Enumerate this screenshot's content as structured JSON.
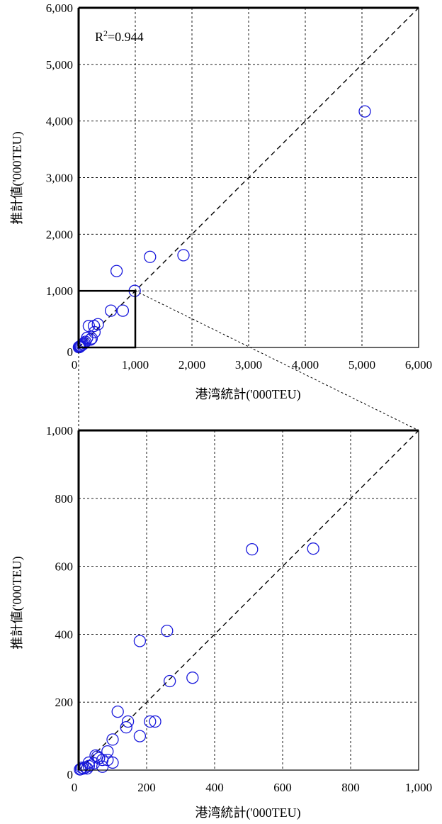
{
  "chart_data": [
    {
      "type": "scatter",
      "xlabel": "港湾統計('000TEU)",
      "ylabel": "推計値('000TEU)",
      "annotation": {
        "base": "R",
        "sup": "2",
        "rest": "=0.944"
      },
      "xlim": [
        0,
        6000
      ],
      "ylim": [
        0,
        6000
      ],
      "xticks": [
        0,
        1000,
        2000,
        3000,
        4000,
        5000,
        6000
      ],
      "yticks": [
        0,
        1000,
        2000,
        3000,
        4000,
        5000,
        6000
      ],
      "xtick_labels": [
        "0",
        "1,000",
        "2,000",
        "3,000",
        "4,000",
        "5,000",
        "6,000"
      ],
      "ytick_labels": [
        "0",
        "1,000",
        "2,000",
        "3,000",
        "4,000",
        "5,000",
        "6,000"
      ],
      "grid": true,
      "reference_line": "y=x",
      "zoom_box": [
        0,
        1000,
        0,
        1000
      ],
      "points": [
        {
          "x": 5050,
          "y": 4170
        },
        {
          "x": 1850,
          "y": 1630
        },
        {
          "x": 1260,
          "y": 1600
        },
        {
          "x": 670,
          "y": 1350
        },
        {
          "x": 990,
          "y": 1000
        },
        {
          "x": 780,
          "y": 650
        },
        {
          "x": 570,
          "y": 650
        },
        {
          "x": 340,
          "y": 410
        },
        {
          "x": 270,
          "y": 380
        },
        {
          "x": 180,
          "y": 380
        },
        {
          "x": 280,
          "y": 270
        },
        {
          "x": 230,
          "y": 160
        },
        {
          "x": 210,
          "y": 140
        },
        {
          "x": 150,
          "y": 170
        },
        {
          "x": 120,
          "y": 100
        },
        {
          "x": 100,
          "y": 80
        },
        {
          "x": 80,
          "y": 60
        },
        {
          "x": 60,
          "y": 45
        },
        {
          "x": 40,
          "y": 30
        },
        {
          "x": 30,
          "y": 20
        },
        {
          "x": 20,
          "y": 15
        },
        {
          "x": 15,
          "y": 10
        },
        {
          "x": 10,
          "y": 8
        },
        {
          "x": 5,
          "y": 5
        }
      ]
    },
    {
      "type": "scatter",
      "xlabel": "港湾統計('000TEU)",
      "ylabel": "推計値('000TEU)",
      "xlim": [
        0,
        1000
      ],
      "ylim": [
        0,
        1000
      ],
      "xticks": [
        0,
        200,
        400,
        600,
        800,
        1000
      ],
      "yticks": [
        0,
        200,
        400,
        600,
        800,
        1000
      ],
      "xtick_labels": [
        "0",
        "200",
        "400",
        "600",
        "800",
        "1,000"
      ],
      "ytick_labels": [
        "0",
        "200",
        "400",
        "600",
        "800",
        "1,000"
      ],
      "grid": true,
      "reference_line": "y=x",
      "points": [
        {
          "x": 690,
          "y": 652
        },
        {
          "x": 510,
          "y": 650
        },
        {
          "x": 260,
          "y": 410
        },
        {
          "x": 180,
          "y": 380
        },
        {
          "x": 335,
          "y": 272
        },
        {
          "x": 268,
          "y": 262
        },
        {
          "x": 115,
          "y": 172
        },
        {
          "x": 145,
          "y": 143
        },
        {
          "x": 140,
          "y": 126
        },
        {
          "x": 210,
          "y": 143
        },
        {
          "x": 225,
          "y": 143
        },
        {
          "x": 180,
          "y": 100
        },
        {
          "x": 100,
          "y": 90
        },
        {
          "x": 50,
          "y": 43
        },
        {
          "x": 55,
          "y": 40
        },
        {
          "x": 60,
          "y": 35
        },
        {
          "x": 85,
          "y": 55
        },
        {
          "x": 85,
          "y": 30
        },
        {
          "x": 70,
          "y": 30
        },
        {
          "x": 100,
          "y": 22
        },
        {
          "x": 70,
          "y": 10
        },
        {
          "x": 45,
          "y": 20
        },
        {
          "x": 30,
          "y": 22
        },
        {
          "x": 30,
          "y": 12
        },
        {
          "x": 20,
          "y": 8
        },
        {
          "x": 15,
          "y": 5
        },
        {
          "x": 10,
          "y": 7
        },
        {
          "x": 7,
          "y": 3
        },
        {
          "x": 4,
          "y": 2
        },
        {
          "x": 25,
          "y": 5
        }
      ]
    }
  ]
}
